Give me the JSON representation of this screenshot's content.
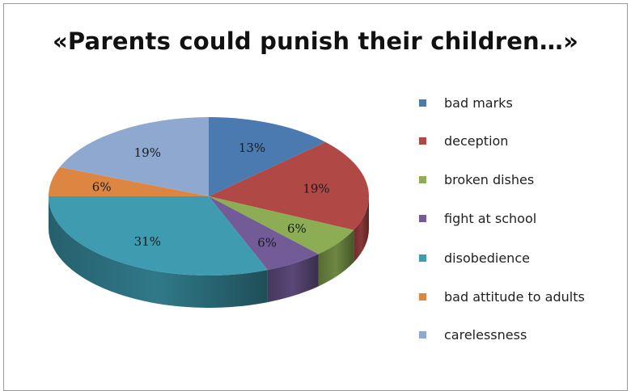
{
  "chart_data": {
    "type": "pie",
    "title": "«Parents could punish their children…»",
    "labels": [
      "bad marks",
      "deception",
      "broken dishes",
      "fight at school",
      "disobedience",
      "bad attitude to adults",
      "carelessness"
    ],
    "values": [
      13,
      19,
      6,
      6,
      31,
      6,
      19
    ],
    "data_labels": [
      "13%",
      "19%",
      "6%",
      "6%",
      "31%",
      "6%",
      "19%"
    ],
    "colors": [
      "#4a7ab0",
      "#b04846",
      "#8cad54",
      "#735b97",
      "#3e9bb0",
      "#dd8642",
      "#8ea8d0"
    ],
    "style": "3d",
    "legend_position": "right"
  }
}
